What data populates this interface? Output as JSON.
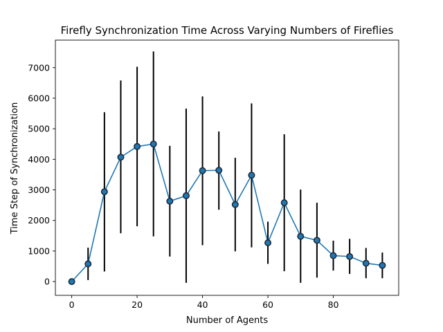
{
  "chart_data": {
    "type": "line",
    "title": "Firefly Synchronization Time Across Varying Numbers of Fireflies",
    "xlabel": "Number of Agents",
    "ylabel": "Time Step of Synchronization",
    "xlim": [
      -5,
      100
    ],
    "ylim": [
      -450,
      7900
    ],
    "xticks": [
      0,
      20,
      40,
      60,
      80
    ],
    "yticks": [
      0,
      1000,
      2000,
      3000,
      4000,
      5000,
      6000,
      7000
    ],
    "grid": false,
    "legend": "none",
    "line_color": "#1f77b4",
    "errorbar_color": "#000000",
    "marker_edge_color": "#1f2a36",
    "series": [
      {
        "x": [
          0,
          5,
          10,
          15,
          20,
          25,
          30,
          35,
          40,
          45,
          50,
          55,
          60,
          65,
          70,
          75,
          80,
          85,
          90,
          95
        ],
        "y": [
          0,
          580,
          2940,
          4070,
          4420,
          4500,
          2630,
          2810,
          3630,
          3640,
          2520,
          3480,
          1270,
          2580,
          1480,
          1350,
          850,
          820,
          600,
          530
        ],
        "yerr_low": [
          0,
          50,
          330,
          1580,
          1810,
          1480,
          820,
          -40,
          1190,
          2350,
          990,
          1120,
          580,
          340,
          -40,
          130,
          360,
          250,
          110,
          110
        ],
        "yerr_high": [
          0,
          1110,
          5540,
          6580,
          7030,
          7530,
          4440,
          5660,
          6060,
          4910,
          4050,
          5830,
          1960,
          4820,
          3010,
          2580,
          1340,
          1400,
          1100,
          950
        ]
      }
    ]
  }
}
